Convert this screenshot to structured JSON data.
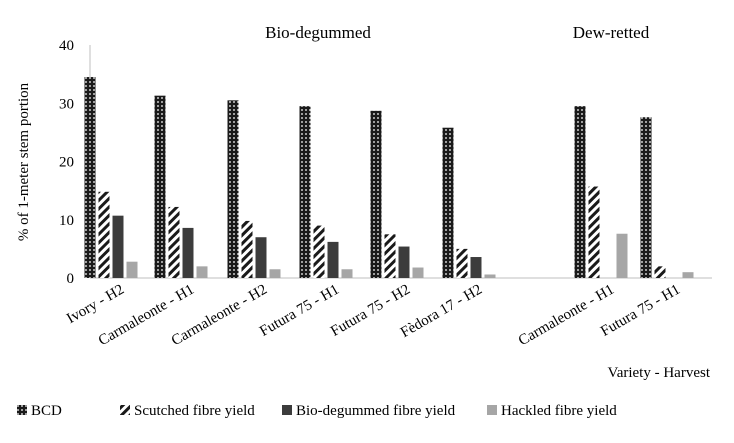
{
  "chart_data": {
    "type": "bar",
    "xlabel": "Variety - Harvest",
    "ylabel": "% of 1-meter stem portion",
    "ylim": [
      0,
      40
    ],
    "yticks": [
      "0",
      "10",
      "20",
      "30",
      "40"
    ],
    "grid": false,
    "legend_position": "bottom",
    "groups": [
      {
        "label": "Bio-degummed",
        "categories": [
          "Ivory - H2",
          "Carmaleonte - H1",
          "Carmaleonte - H2",
          "Futura 75 - H1",
          "Futura 75 - H2",
          "Fèdora 17 - H2"
        ]
      },
      {
        "label": "Dew-retted",
        "categories": [
          "Carmaleonte - H1",
          "Futura 75 - H1"
        ]
      }
    ],
    "categories": [
      "Ivory - H2",
      "Carmaleonte - H1",
      "Carmaleonte - H2",
      "Futura 75 - H1",
      "Futura 75 - H2",
      "Fèdora 17 - H2",
      "Carmaleonte - H1",
      "Futura 75 - H1"
    ],
    "series": [
      {
        "name": "BCD",
        "values": [
          34.5,
          31.3,
          30.5,
          29.5,
          28.7,
          25.8,
          29.5,
          27.6
        ],
        "color": "#1a1a1a",
        "pattern": "dots"
      },
      {
        "name": "Scutched fibre yield",
        "values": [
          14.8,
          12.2,
          9.8,
          9.0,
          7.5,
          5.0,
          15.7,
          2.0
        ],
        "color": "#1a1a1a",
        "pattern": "diagonal"
      },
      {
        "name": "Bio-degummed fibre yield",
        "values": [
          10.7,
          8.6,
          7.0,
          6.2,
          5.4,
          3.6,
          null,
          null
        ],
        "color": "#3c3c3c",
        "pattern": "solid"
      },
      {
        "name": "Hackled fibre yield",
        "values": [
          2.8,
          2.0,
          1.5,
          1.5,
          1.8,
          0.6,
          7.6,
          1.0
        ],
        "color": "#a6a6a6",
        "pattern": "solid"
      }
    ]
  }
}
